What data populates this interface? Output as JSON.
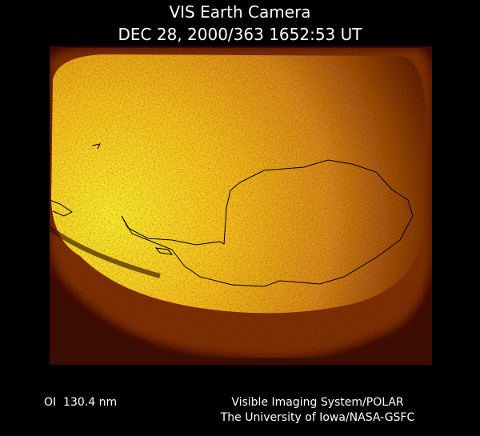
{
  "header": {
    "title": "VIS Earth Camera",
    "timestamp": "DEC 28, 2000/363 1652:53 UT"
  },
  "footer": {
    "filter": "OI  130.4 nm",
    "credit_lines": [
      "Visible Imaging System/POLAR",
      "The University of Iowa/NASA-GSFC"
    ]
  }
}
